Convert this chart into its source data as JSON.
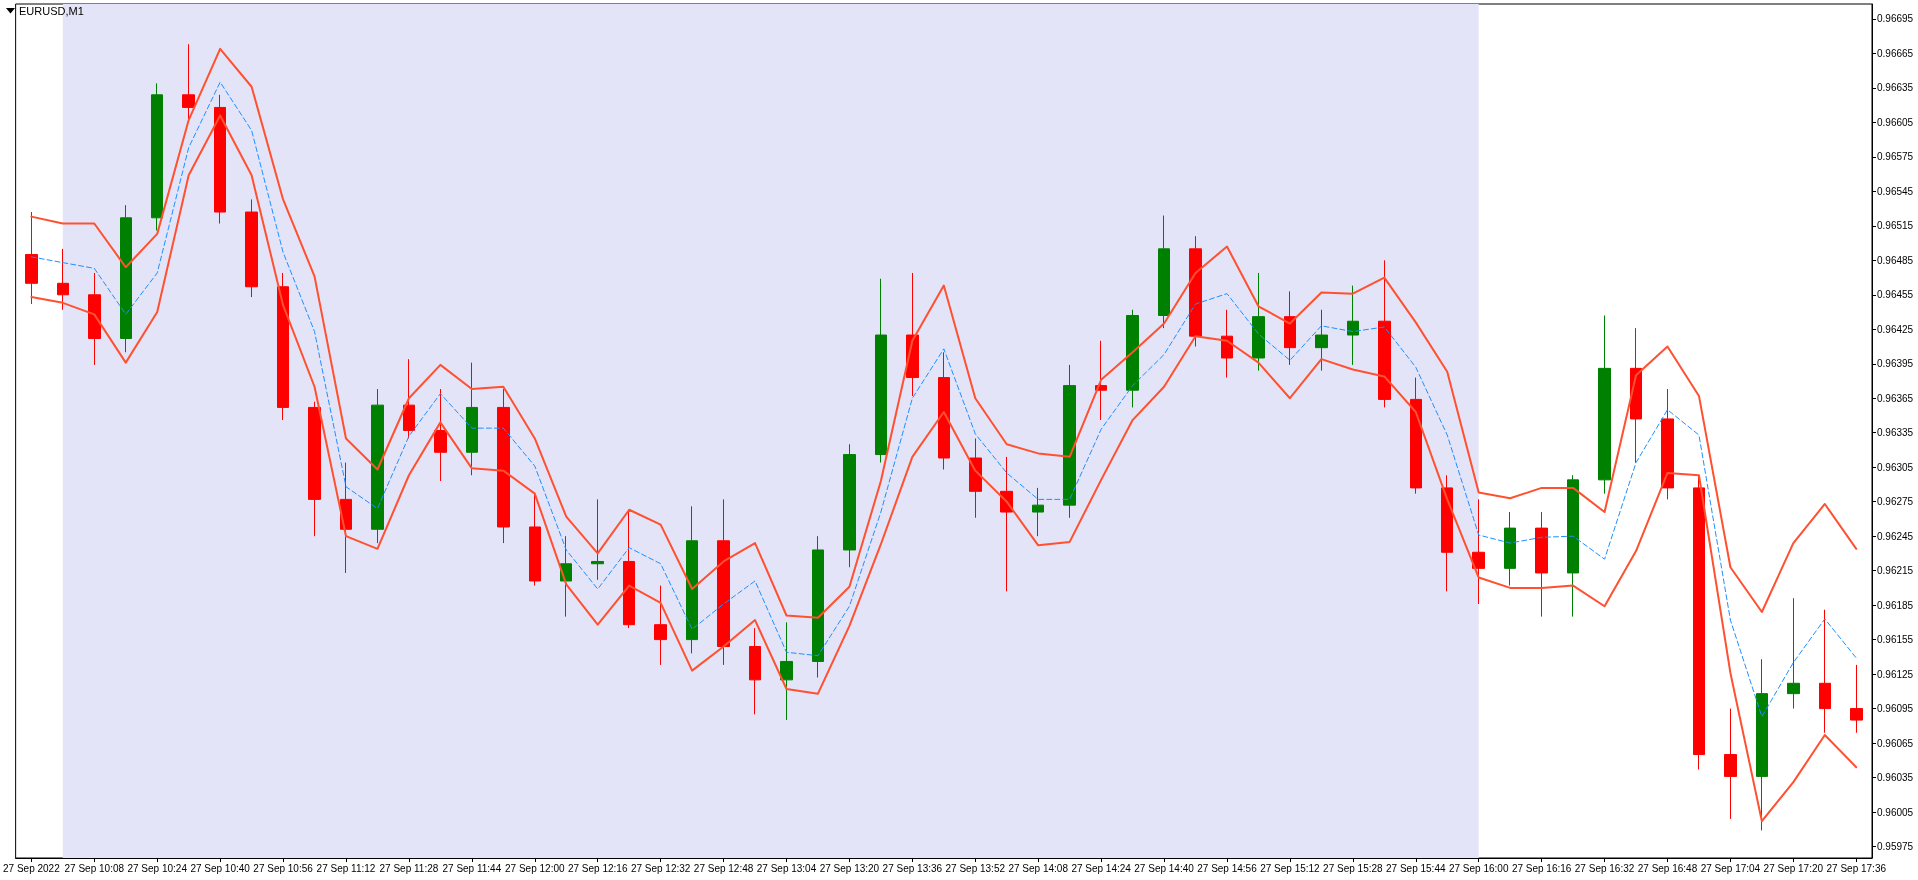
{
  "chart_data": {
    "type": "candlestick",
    "title": "EURUSD,M1",
    "marker": "none",
    "x": [
      "2022-09-27T09:52",
      "2022-09-27T10:00",
      "2022-09-27T10:08",
      "2022-09-27T10:16",
      "2022-09-27T10:24",
      "2022-09-27T10:32",
      "2022-09-27T10:40",
      "2022-09-27T10:48",
      "2022-09-27T10:56",
      "2022-09-27T11:04",
      "2022-09-27T11:12",
      "2022-09-27T11:20",
      "2022-09-27T11:28",
      "2022-09-27T11:36",
      "2022-09-27T11:44",
      "2022-09-27T11:52",
      "2022-09-27T12:00",
      "2022-09-27T12:08",
      "2022-09-27T12:16",
      "2022-09-27T12:24",
      "2022-09-27T12:32",
      "2022-09-27T12:40",
      "2022-09-27T12:48",
      "2022-09-27T12:56",
      "2022-09-27T13:04",
      "2022-09-27T13:12",
      "2022-09-27T13:20",
      "2022-09-27T13:28",
      "2022-09-27T13:36",
      "2022-09-27T13:44",
      "2022-09-27T13:52",
      "2022-09-27T14:00",
      "2022-09-27T14:08",
      "2022-09-27T14:16",
      "2022-09-27T14:24",
      "2022-09-27T14:32",
      "2022-09-27T14:40",
      "2022-09-27T14:48",
      "2022-09-27T14:56",
      "2022-09-27T15:04",
      "2022-09-27T15:12",
      "2022-09-27T15:20",
      "2022-09-27T15:28",
      "2022-09-27T15:36",
      "2022-09-27T15:44",
      "2022-09-27T15:52",
      "2022-09-27T16:00",
      "2022-09-27T16:08",
      "2022-09-27T16:16",
      "2022-09-27T16:24",
      "2022-09-27T16:32",
      "2022-09-27T16:40",
      "2022-09-27T16:48",
      "2022-09-27T16:56",
      "2022-09-27T17:04",
      "2022-09-27T17:12",
      "2022-09-27T17:20",
      "2022-09-27T17:28",
      "2022-09-27T17:36"
    ],
    "xlim": [
      "2022-09-27T09:48",
      "2022-09-27T17:40"
    ],
    "xticks": [
      {
        "value": "2022-09-27T09:52",
        "label": "27 Sep 2022"
      },
      {
        "value": "2022-09-27T10:08",
        "label": "27 Sep 10:08"
      },
      {
        "value": "2022-09-27T10:24",
        "label": "27 Sep 10:24"
      },
      {
        "value": "2022-09-27T10:40",
        "label": "27 Sep 10:40"
      },
      {
        "value": "2022-09-27T10:56",
        "label": "27 Sep 10:56"
      },
      {
        "value": "2022-09-27T11:12",
        "label": "27 Sep 11:12"
      },
      {
        "value": "2022-09-27T11:28",
        "label": "27 Sep 11:28"
      },
      {
        "value": "2022-09-27T11:44",
        "label": "27 Sep 11:44"
      },
      {
        "value": "2022-09-27T12:00",
        "label": "27 Sep 12:00"
      },
      {
        "value": "2022-09-27T12:16",
        "label": "27 Sep 12:16"
      },
      {
        "value": "2022-09-27T12:32",
        "label": "27 Sep 12:32"
      },
      {
        "value": "2022-09-27T12:48",
        "label": "27 Sep 12:48"
      },
      {
        "value": "2022-09-27T13:04",
        "label": "27 Sep 13:04"
      },
      {
        "value": "2022-09-27T13:20",
        "label": "27 Sep 13:20"
      },
      {
        "value": "2022-09-27T13:36",
        "label": "27 Sep 13:36"
      },
      {
        "value": "2022-09-27T13:52",
        "label": "27 Sep 13:52"
      },
      {
        "value": "2022-09-27T14:08",
        "label": "27 Sep 14:08"
      },
      {
        "value": "2022-09-27T14:24",
        "label": "27 Sep 14:24"
      },
      {
        "value": "2022-09-27T14:40",
        "label": "27 Sep 14:40"
      },
      {
        "value": "2022-09-27T14:56",
        "label": "27 Sep 14:56"
      },
      {
        "value": "2022-09-27T15:12",
        "label": "27 Sep 15:12"
      },
      {
        "value": "2022-09-27T15:28",
        "label": "27 Sep 15:28"
      },
      {
        "value": "2022-09-27T15:44",
        "label": "27 Sep 15:44"
      },
      {
        "value": "2022-09-27T16:00",
        "label": "27 Sep 16:00"
      },
      {
        "value": "2022-09-27T16:16",
        "label": "27 Sep 16:16"
      },
      {
        "value": "2022-09-27T16:32",
        "label": "27 Sep 16:32"
      },
      {
        "value": "2022-09-27T16:48",
        "label": "27 Sep 16:48"
      },
      {
        "value": "2022-09-27T17:04",
        "label": "27 Sep 17:04"
      },
      {
        "value": "2022-09-27T17:20",
        "label": "27 Sep 17:20"
      },
      {
        "value": "2022-09-27T17:36",
        "label": "27 Sep 17:36"
      }
    ],
    "ylim": [
      0.95965,
      0.96708
    ],
    "yticks": [
      0.95975,
      0.96005,
      0.96035,
      0.96065,
      0.96095,
      0.96125,
      0.96155,
      0.96185,
      0.96215,
      0.96245,
      0.96275,
      0.96305,
      0.96335,
      0.96365,
      0.96395,
      0.96425,
      0.96455,
      0.96485,
      0.96515,
      0.96545,
      0.96575,
      0.96605,
      0.96635,
      0.96665,
      0.96695
    ],
    "bands": [
      {
        "axis": "x",
        "from": "2022-09-27T10:00",
        "to": "2022-09-27T16:00",
        "color": "#e4e4f8"
      }
    ],
    "series": [
      {
        "type": "line",
        "color": "#ff5030",
        "values": [
          0.96523,
          0.96517,
          0.96517,
          0.96479,
          0.96508,
          0.96607,
          0.96669,
          0.96636,
          0.96538,
          0.96471,
          0.9633,
          0.96303,
          0.96365,
          0.96394,
          0.96373,
          0.96375,
          0.9633,
          0.96262,
          0.9623,
          0.96268,
          0.96255,
          0.96199,
          0.96223,
          0.96239,
          0.96176,
          0.96174,
          0.96201,
          0.96293,
          0.96415,
          0.96463,
          0.96365,
          0.96325,
          0.96317,
          0.96314,
          0.96381,
          0.96405,
          0.9643,
          0.96474,
          0.96497,
          0.96445,
          0.9643,
          0.96457,
          0.96456,
          0.9647,
          0.96431,
          0.96388,
          0.96283,
          0.96278,
          0.96287,
          0.96287,
          0.96266,
          0.96385,
          0.9641,
          0.96367,
          0.96218,
          0.96179,
          0.96239,
          0.96273,
          0.96234
        ]
      },
      {
        "type": "line",
        "color": "#ff5030",
        "values": [
          0.96453,
          0.96448,
          0.96438,
          0.96396,
          0.9644,
          0.96559,
          0.96611,
          0.96559,
          0.96446,
          0.96375,
          0.96245,
          0.96234,
          0.96298,
          0.96344,
          0.96304,
          0.96302,
          0.96282,
          0.96203,
          0.96168,
          0.96202,
          0.96187,
          0.96128,
          0.96149,
          0.96172,
          0.96112,
          0.96108,
          0.96167,
          0.96238,
          0.96314,
          0.96353,
          0.96302,
          0.96275,
          0.96237,
          0.9624,
          0.96294,
          0.96346,
          0.96375,
          0.96419,
          0.96415,
          0.96396,
          0.96365,
          0.96399,
          0.9639,
          0.96384,
          0.96353,
          0.96277,
          0.96209,
          0.962,
          0.962,
          0.96202,
          0.96184,
          0.96232,
          0.963,
          0.96298,
          0.96126,
          0.95997,
          0.96031,
          0.96072,
          0.96044
        ]
      },
      {
        "type": "line",
        "color": "#1e90ff",
        "line_style": "dashed",
        "values": [
          0.96488,
          0.96483,
          0.96478,
          0.96438,
          0.96474,
          0.96583,
          0.9664,
          0.96598,
          0.96492,
          0.96423,
          0.96288,
          0.96269,
          0.96332,
          0.96369,
          0.96339,
          0.96339,
          0.96306,
          0.96233,
          0.96199,
          0.96235,
          0.96221,
          0.96164,
          0.96186,
          0.96206,
          0.96144,
          0.96141,
          0.96184,
          0.96266,
          0.96365,
          0.96408,
          0.96334,
          0.963,
          0.96277,
          0.96277,
          0.96338,
          0.96376,
          0.96403,
          0.96447,
          0.96456,
          0.96421,
          0.96398,
          0.96428,
          0.96423,
          0.96427,
          0.96392,
          0.96333,
          0.96246,
          0.96239,
          0.96244,
          0.96245,
          0.96225,
          0.96309,
          0.96355,
          0.96333,
          0.96172,
          0.96088,
          0.96135,
          0.96173,
          0.96139
        ]
      },
      {
        "ohlc": [
          [
            0.9649,
            0.96527,
            0.96447,
            0.96465
          ],
          [
            0.96465,
            0.96495,
            0.96442,
            0.96455
          ],
          [
            0.96455,
            0.96474,
            0.96394,
            0.96417
          ],
          [
            0.96417,
            0.96533,
            0.96405,
            0.96522
          ],
          [
            0.96522,
            0.96639,
            0.96511,
            0.96629
          ],
          [
            0.96629,
            0.96673,
            0.96607,
            0.96618
          ],
          [
            0.96618,
            0.96629,
            0.96517,
            0.96527
          ],
          [
            0.96527,
            0.96538,
            0.96453,
            0.96462
          ],
          [
            0.96462,
            0.96474,
            0.96346,
            0.96357
          ],
          [
            0.96357,
            0.96362,
            0.96245,
            0.96277
          ],
          [
            0.96277,
            0.96309,
            0.96213,
            0.96251
          ],
          [
            0.96251,
            0.96373,
            0.96239,
            0.96359
          ],
          [
            0.96359,
            0.96399,
            0.9633,
            0.96337
          ],
          [
            0.96337,
            0.96373,
            0.96293,
            0.96318
          ],
          [
            0.96318,
            0.96396,
            0.96298,
            0.96357
          ],
          [
            0.96357,
            0.96373,
            0.96239,
            0.96253
          ],
          [
            0.96253,
            0.96282,
            0.96202,
            0.96206
          ],
          [
            0.96206,
            0.96245,
            0.96175,
            0.96221
          ],
          [
            0.96221,
            0.96277,
            0.96207,
            0.96223
          ],
          [
            0.96223,
            0.96266,
            0.96165,
            0.96168
          ],
          [
            0.96168,
            0.96202,
            0.96133,
            0.96155
          ],
          [
            0.96155,
            0.96271,
            0.96143,
            0.96241
          ],
          [
            0.96241,
            0.96277,
            0.96133,
            0.96149
          ],
          [
            0.96149,
            0.96165,
            0.9609,
            0.9612
          ],
          [
            0.9612,
            0.9617,
            0.96085,
            0.96136
          ],
          [
            0.96136,
            0.96245,
            0.96122,
            0.96233
          ],
          [
            0.96233,
            0.96325,
            0.96218,
            0.96316
          ],
          [
            0.96316,
            0.96469,
            0.96309,
            0.9642
          ],
          [
            0.9642,
            0.96474,
            0.96367,
            0.96383
          ],
          [
            0.96383,
            0.96405,
            0.96303,
            0.96313
          ],
          [
            0.96313,
            0.9633,
            0.96261,
            0.96284
          ],
          [
            0.96284,
            0.96314,
            0.96197,
            0.96266
          ],
          [
            0.96266,
            0.96287,
            0.96245,
            0.96272
          ],
          [
            0.96272,
            0.96394,
            0.96261,
            0.96376
          ],
          [
            0.96376,
            0.96415,
            0.96346,
            0.96372
          ],
          [
            0.96372,
            0.96442,
            0.96357,
            0.96437
          ],
          [
            0.96437,
            0.96524,
            0.96426,
            0.96495
          ],
          [
            0.96495,
            0.96506,
            0.9641,
            0.96419
          ],
          [
            0.96419,
            0.96442,
            0.96383,
            0.964
          ],
          [
            0.964,
            0.96474,
            0.96389,
            0.96436
          ],
          [
            0.96436,
            0.96458,
            0.96394,
            0.96409
          ],
          [
            0.96409,
            0.96442,
            0.96389,
            0.9642
          ],
          [
            0.9642,
            0.96463,
            0.96394,
            0.96432
          ],
          [
            0.96432,
            0.96485,
            0.96357,
            0.96364
          ],
          [
            0.96364,
            0.96383,
            0.96282,
            0.96287
          ],
          [
            0.96287,
            0.96298,
            0.96197,
            0.96231
          ],
          [
            0.96231,
            0.96277,
            0.96186,
            0.96217
          ],
          [
            0.96217,
            0.96266,
            0.96202,
            0.96252
          ],
          [
            0.96252,
            0.96266,
            0.96175,
            0.96213
          ],
          [
            0.96213,
            0.96298,
            0.96175,
            0.96294
          ],
          [
            0.96294,
            0.96437,
            0.96282,
            0.96391
          ],
          [
            0.96391,
            0.96426,
            0.96309,
            0.96347
          ],
          [
            0.96347,
            0.96373,
            0.96277,
            0.96287
          ],
          [
            0.96287,
            0.96298,
            0.96042,
            0.96055
          ],
          [
            0.96055,
            0.96095,
            0.95999,
            0.96036
          ],
          [
            0.96036,
            0.96138,
            0.95989,
            0.96108
          ],
          [
            0.96108,
            0.96191,
            0.96095,
            0.96117
          ],
          [
            0.96117,
            0.96181,
            0.96074,
            0.96095
          ],
          [
            0.96095,
            0.96133,
            0.96074,
            0.96085
          ]
        ],
        "colors": [
          "#ff0000",
          "#ff0000",
          "#ff0000",
          "#008000",
          "#008000",
          "#ff0000",
          "#ff0000",
          "#ff0000",
          "#ff0000",
          "#ff0000",
          "#ff0000",
          "#008000",
          "#ff0000",
          "#ff0000",
          "#008000",
          "#ff0000",
          "#ff0000",
          "#008000",
          "#008000",
          "#ff0000",
          "#ff0000",
          "#008000",
          "#ff0000",
          "#ff0000",
          "#008000",
          "#008000",
          "#008000",
          "#008000",
          "#ff0000",
          "#ff0000",
          "#ff0000",
          "#ff0000",
          "#008000",
          "#008000",
          "#ff0000",
          "#008000",
          "#008000",
          "#ff0000",
          "#ff0000",
          "#008000",
          "#ff0000",
          "#008000",
          "#008000",
          "#ff0000",
          "#ff0000",
          "#ff0000",
          "#ff0000",
          "#008000",
          "#ff0000",
          "#008000",
          "#008000",
          "#ff0000",
          "#ff0000",
          "#ff0000",
          "#ff0000",
          "#008000",
          "#008000",
          "#ff0000",
          "#ff0000"
        ]
      }
    ]
  }
}
